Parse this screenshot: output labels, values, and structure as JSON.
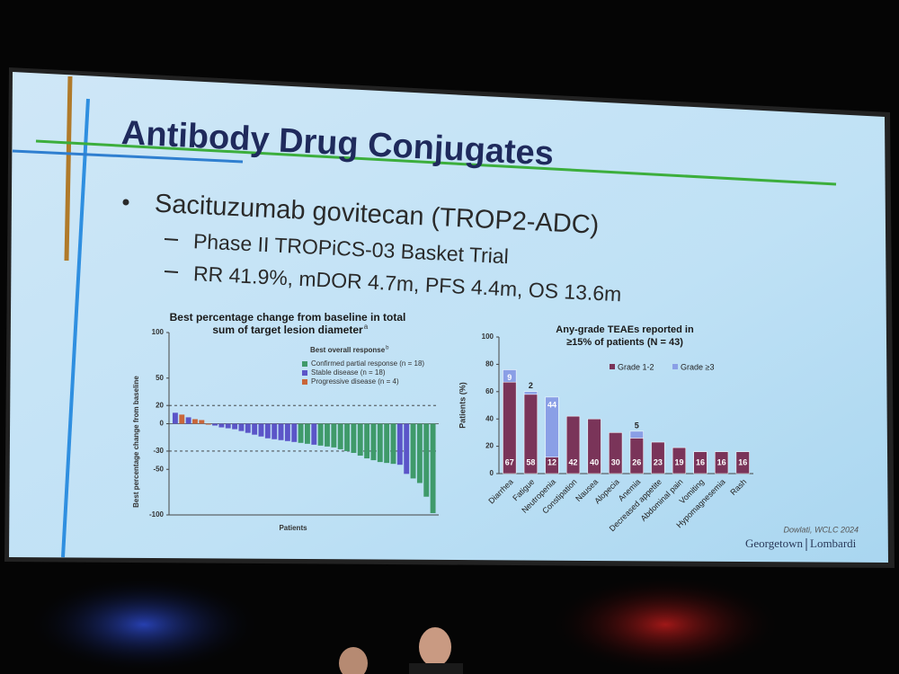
{
  "slide": {
    "title": "Antibody Drug Conjugates",
    "bullet": "Sacituzumab govitecan (TROP2-ADC)",
    "sub_bullets": [
      "Phase II TROPiCS-03 Basket Trial",
      "RR 41.9%, mDOR 4.7m, PFS 4.4m, OS 13.6m"
    ],
    "citation": "Dowlati, WCLC 2024",
    "logo": [
      "Georgetown",
      "Lombardi"
    ]
  },
  "chart_data": [
    {
      "type": "waterfall",
      "title": [
        "Best percentage change from baseline in total",
        "sum of target lesion diameter"
      ],
      "title_note": "a",
      "legend_title": "Best overall response",
      "legend_title_note": "b",
      "y_label": "Best percentage change from baseline",
      "x_label": "Patients",
      "ylim": [
        -100,
        100
      ],
      "yticks": [
        100,
        50,
        20,
        0,
        -30,
        -50,
        -100
      ],
      "reference_lines": [
        20,
        -30
      ],
      "series": [
        {
          "name": "Confirmed partial response (n = 18)",
          "color": "#3f9a6a",
          "values": [
            null,
            null,
            null,
            null,
            null,
            null,
            null,
            null,
            null,
            null,
            null,
            null,
            null,
            null,
            null,
            null,
            null,
            null,
            null,
            -21,
            -22,
            null,
            -24,
            -25,
            -26,
            -28,
            -30,
            -32,
            -35,
            -38,
            -40,
            -42,
            -43,
            -44,
            null,
            null,
            -60,
            -65,
            -80,
            -98
          ]
        },
        {
          "name": "Stable disease (n = 18)",
          "color": "#5b55c8",
          "values": [
            12,
            null,
            7,
            null,
            null,
            null,
            -2,
            -4,
            -5,
            -6,
            -8,
            -10,
            -12,
            -14,
            -16,
            -17,
            -18,
            -19,
            -20,
            null,
            null,
            -23,
            null,
            null,
            null,
            null,
            null,
            null,
            null,
            null,
            null,
            null,
            null,
            null,
            -45,
            -55,
            null,
            null,
            null,
            null
          ]
        },
        {
          "name": "Progressive disease (n = 4)",
          "color": "#c9663a",
          "values": [
            null,
            10,
            null,
            5,
            4,
            -1,
            null,
            null,
            null,
            null,
            null,
            null,
            null,
            null,
            null,
            null,
            null,
            null,
            null,
            null,
            null,
            null,
            null,
            null,
            null,
            null,
            null,
            null,
            null,
            null,
            null,
            null,
            null,
            null,
            null,
            null,
            null,
            null,
            null,
            null
          ]
        }
      ]
    },
    {
      "type": "stacked-bar",
      "title": [
        "Any-grade TEAEs reported in",
        "≥15% of patients (N = 43)"
      ],
      "y_label": "Patients (%)",
      "categories": [
        "Diarrhea",
        "Fatigue",
        "Neutropenia",
        "Constipation",
        "Nausea",
        "Alopecia",
        "Anemia",
        "Decreased appetite",
        "Abdominal pain",
        "Vomiting",
        "Hypomagnesemia",
        "Rash"
      ],
      "ylim": [
        0,
        100
      ],
      "yticks": [
        0,
        20,
        40,
        60,
        80,
        100
      ],
      "series": [
        {
          "name": "Grade 1-2",
          "color": "#7a3459",
          "values": [
            67,
            58,
            12,
            42,
            40,
            30,
            26,
            23,
            19,
            16,
            16,
            16
          ]
        },
        {
          "name": "Grade ≥3",
          "color": "#8a9fe6",
          "values": [
            9,
            2,
            44,
            null,
            null,
            null,
            5,
            null,
            null,
            null,
            null,
            null
          ]
        }
      ]
    }
  ]
}
